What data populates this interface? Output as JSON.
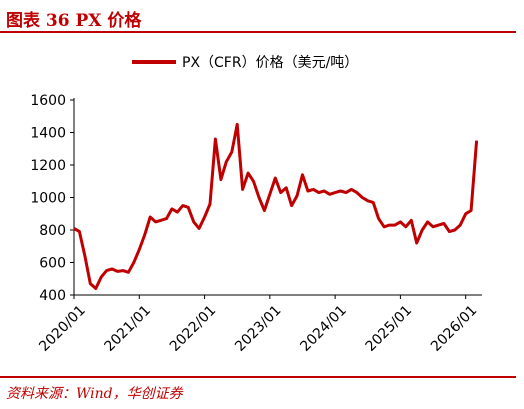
{
  "figure": {
    "title": "图表 36 PX 价格",
    "source": "资料来源：Wind，华创证券"
  },
  "colors": {
    "accent": "#c00000",
    "series": "#c00000"
  },
  "chart_data": {
    "type": "line",
    "title": "",
    "xlabel": "",
    "ylabel": "",
    "ylim": [
      400,
      1600
    ],
    "yticks": [
      400,
      600,
      800,
      1000,
      1200,
      1400,
      1600
    ],
    "xlim": [
      "2020-01",
      "2026-04"
    ],
    "xticks": [
      "2020/01",
      "2021/01",
      "2022/01",
      "2023/01",
      "2024/01",
      "2025/01",
      "2026/01"
    ],
    "grid": false,
    "legend_position": "top-center",
    "series": [
      {
        "name": "PX（CFR）价格（美元/吨）",
        "x": [
          "2020-01",
          "2020-02",
          "2020-03",
          "2020-04",
          "2020-05",
          "2020-06",
          "2020-07",
          "2020-08",
          "2020-09",
          "2020-10",
          "2020-11",
          "2020-12",
          "2021-01",
          "2021-02",
          "2021-03",
          "2021-04",
          "2021-05",
          "2021-06",
          "2021-07",
          "2021-08",
          "2021-09",
          "2021-10",
          "2021-11",
          "2021-12",
          "2022-01",
          "2022-02",
          "2022-03",
          "2022-04",
          "2022-05",
          "2022-06",
          "2022-07",
          "2022-08",
          "2022-09",
          "2022-10",
          "2022-11",
          "2022-12",
          "2023-01",
          "2023-02",
          "2023-03",
          "2023-04",
          "2023-05",
          "2023-06",
          "2023-07",
          "2023-08",
          "2023-09",
          "2023-10",
          "2023-11",
          "2023-12",
          "2024-01",
          "2024-02",
          "2024-03",
          "2024-04",
          "2024-05",
          "2024-06",
          "2024-07",
          "2024-08",
          "2024-09",
          "2024-10",
          "2024-11",
          "2024-12",
          "2025-01",
          "2025-02",
          "2025-03",
          "2025-04",
          "2025-05",
          "2025-06",
          "2025-07",
          "2025-08",
          "2025-09",
          "2025-10",
          "2025-11",
          "2025-12",
          "2026-01",
          "2026-02",
          "2026-03"
        ],
        "values": [
          810,
          790,
          640,
          470,
          440,
          510,
          550,
          560,
          545,
          550,
          540,
          600,
          680,
          770,
          880,
          850,
          860,
          870,
          930,
          910,
          950,
          940,
          850,
          810,
          880,
          960,
          1360,
          1110,
          1220,
          1280,
          1450,
          1050,
          1150,
          1100,
          1000,
          920,
          1020,
          1120,
          1030,
          1060,
          950,
          1010,
          1140,
          1040,
          1050,
          1030,
          1040,
          1020,
          1030,
          1040,
          1030,
          1050,
          1030,
          1000,
          980,
          970,
          870,
          820,
          830,
          830,
          850,
          820,
          860,
          720,
          800,
          850,
          820,
          830,
          840,
          790,
          800,
          830,
          900,
          920,
          1350
        ]
      }
    ]
  }
}
